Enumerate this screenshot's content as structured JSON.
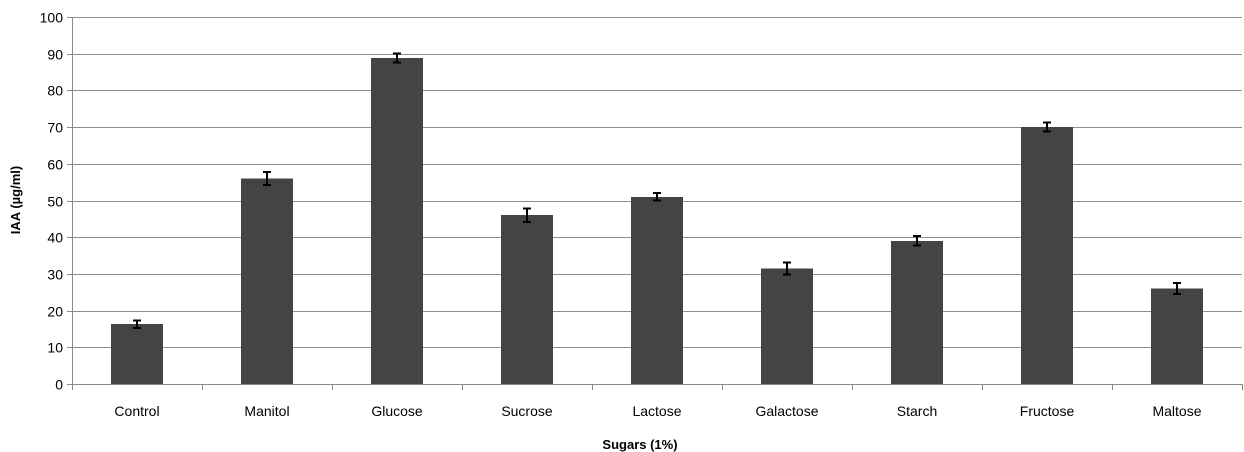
{
  "chart_data": {
    "type": "bar",
    "title": "",
    "xlabel": "Sugars (1%)",
    "ylabel": "IAA (µg/ml)",
    "ylim": [
      0,
      100
    ],
    "yticks": [
      0,
      10,
      20,
      30,
      40,
      50,
      60,
      70,
      80,
      90,
      100
    ],
    "grid": true,
    "legend": "none",
    "bar_color": "#444444",
    "categories": [
      "Control",
      "Manitol",
      "Glucose",
      "Sucrose",
      "Lactose",
      "Galactose",
      "Starch",
      "Fructose",
      "Maltose"
    ],
    "values": [
      16.3,
      56.0,
      88.8,
      46.0,
      51.0,
      31.5,
      39.0,
      70.0,
      26.0
    ],
    "errors": [
      1.0,
      1.8,
      1.2,
      1.8,
      1.0,
      1.6,
      1.3,
      1.2,
      1.5
    ]
  }
}
